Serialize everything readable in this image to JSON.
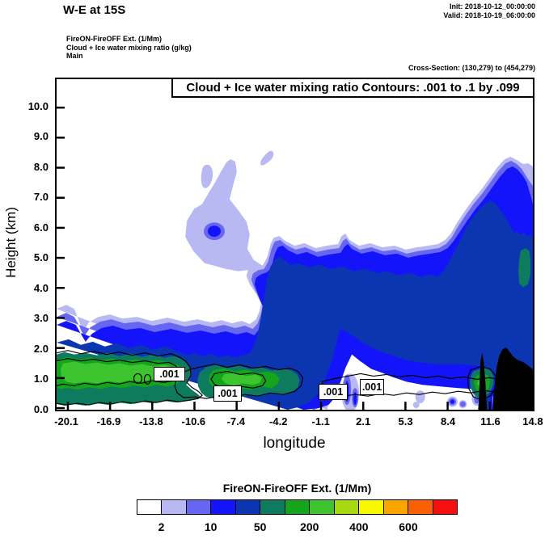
{
  "header": {
    "title": "W-E at 15S",
    "init": "Init: 2018-10-12_00:00:00",
    "valid": "Valid: 2018-10-19_06:00:00",
    "line1": "FireON-FireOFF Ext.  (1/Mm)",
    "line2": "Cloud + Ice water mixing ratio  (g/kg)",
    "line3": "Main",
    "cross_section": "Cross-Section: (130,279) to (454,279)"
  },
  "plot": {
    "contour_title": "Cloud + Ice water mixing ratio Contours: .001 to .1 by .099",
    "xlabel": "longitude",
    "ylabel": "Height (km)",
    "x_tick_labels": [
      "-20.1",
      "-16.9",
      "-13.8",
      "-10.6",
      "-7.4",
      "-4.2",
      "-1.1",
      "2.1",
      "5.3",
      "8.4",
      "11.6",
      "14.8"
    ],
    "y_tick_labels": [
      "0.0",
      "1.0",
      "2.0",
      "3.0",
      "4.0",
      "5.0",
      "6.0",
      "7.0",
      "8.0",
      "9.0",
      "10.0"
    ],
    "contour_labels": [
      ".001",
      ".001",
      ".001",
      ".001"
    ]
  },
  "colorbar": {
    "title": "FireON-FireOFF Ext.  (1/Mm)",
    "tick_labels": [
      "2",
      "10",
      "50",
      "200",
      "400",
      "600"
    ],
    "colors": [
      "#ffffff",
      "#b8b8f2",
      "#6666f1",
      "#1414fb",
      "#0c35b2",
      "#0e7a5e",
      "#14a51c",
      "#3dc42e",
      "#a8d810",
      "#f8f800",
      "#fba400",
      "#fb6000",
      "#f50f0f"
    ],
    "terrain_color": "#000000"
  },
  "chart_data": {
    "type": "heatmap",
    "subtype": "filled contour vertical cross-section with line contours",
    "title": "Cloud + Ice water mixing ratio Contours: .001 to .1 by .099",
    "xlabel": "longitude",
    "ylabel": "Height (km)",
    "x_ticks": [
      -20.1,
      -16.9,
      -13.8,
      -10.6,
      -7.4,
      -4.2,
      -1.1,
      2.1,
      5.3,
      8.4,
      11.6,
      14.8
    ],
    "y_ticks": [
      0.0,
      1.0,
      2.0,
      3.0,
      4.0,
      5.0,
      6.0,
      7.0,
      8.0,
      9.0,
      10.0
    ],
    "xlim": [
      -20.1,
      14.8
    ],
    "ylim": [
      0,
      10.9
    ],
    "grid": false,
    "fill_field": "FireON-FireOFF Ext. (1/Mm)",
    "fill_level_labels": [
      2,
      10,
      50,
      200,
      400,
      600
    ],
    "line_field": "Cloud + Ice water mixing ratio (g/kg)",
    "line_levels": [
      0.001,
      0.1
    ],
    "line_label_positions_lon_km": [
      [
        -12.4,
        1.25
      ],
      [
        -8.1,
        0.65
      ],
      [
        -0.4,
        0.7
      ],
      [
        2.4,
        0.85
      ]
    ],
    "features": [
      {
        "name": "boundary-layer plume with green (200-400 1/Mm) core",
        "lon_range": [
          -20.1,
          -1.5
        ],
        "height_range_km": [
          0,
          3.3
        ],
        "core_height_km": [
          0.5,
          1.2
        ]
      },
      {
        "name": "elevated blue band (10-50 1/Mm) sloping from ~5.7 km at lon -4.5 down to ~2 km eastward",
        "lon_range": [
          -4.5,
          14.8
        ],
        "height_range_km": [
          1,
          5.7
        ]
      },
      {
        "name": "faint mid-level plume (2-10 1/Mm)",
        "lon_range": [
          -10.5,
          -6
        ],
        "height_range_km": [
          3.4,
          8.2
        ]
      },
      {
        "name": "two small faint patches",
        "lon_range": [
          -9.7,
          -4.4
        ],
        "height_range_km": [
          7.3,
          8.4
        ]
      },
      {
        "name": "deep column at eastern edge up to ~8.3 km with teal (50-200) spots",
        "lon_range": [
          11,
          14.8
        ],
        "height_range_km": [
          0,
          8.3
        ]
      },
      {
        "name": "black terrain silhouette",
        "lon_range": [
          10.9,
          14.8
        ],
        "height_range_km": [
          0,
          2.1
        ]
      }
    ]
  }
}
